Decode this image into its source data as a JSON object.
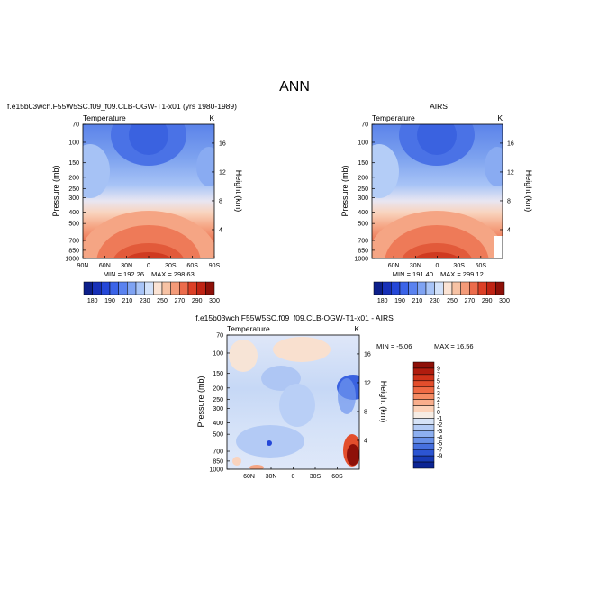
{
  "page_title": "ANN",
  "chart_data": [
    {
      "type": "heatmap",
      "subtype": "zonal-mean contour",
      "title": "f.e15b03wch.F55W5SC.f09_f09.CLB-OGW-T1-x01 (yrs 1980-1989)",
      "variable": "Temperature",
      "units": "K",
      "ylabel": "Pressure (mb)",
      "ylabel_right": "Height (km)",
      "pressure_ticks": [
        "70",
        "100",
        "150",
        "200",
        "250",
        "300",
        "400",
        "500",
        "700",
        "850",
        "1000"
      ],
      "height_ticks": [
        "4",
        "8",
        "12",
        "16"
      ],
      "lat_ticks": [
        "90N",
        "60N",
        "30N",
        "0",
        "30S",
        "60S",
        "90S"
      ],
      "min_label": "MIN = 192.26",
      "max_label": "MAX = 298.63",
      "min": 192.26,
      "max": 298.63,
      "colorbar_levels": [
        "180",
        "190",
        "210",
        "230",
        "250",
        "270",
        "290",
        "300"
      ],
      "colorbar_colors": [
        "#0c1f8a",
        "#1730b8",
        "#2447d8",
        "#3a63e8",
        "#5a82ef",
        "#7fa3f3",
        "#a8c4f7",
        "#d3e2fa",
        "#fbe3d4",
        "#f7c2a4",
        "#f39a78",
        "#ec6c4c",
        "#dc4027",
        "#c02414",
        "#8e1008"
      ]
    },
    {
      "type": "heatmap",
      "subtype": "zonal-mean contour",
      "title": "AIRS",
      "variable": "Temperature",
      "units": "K",
      "ylabel": "Pressure (mb)",
      "ylabel_right": "Height (km)",
      "pressure_ticks": [
        "70",
        "100",
        "150",
        "200",
        "250",
        "300",
        "400",
        "500",
        "700",
        "850",
        "1000"
      ],
      "height_ticks": [
        "4",
        "8",
        "12",
        "16"
      ],
      "lat_ticks": [
        "60N",
        "30N",
        "0",
        "30S",
        "60S"
      ],
      "min_label": "MIN = 191.40",
      "max_label": "MAX = 299.12",
      "min": 191.4,
      "max": 299.12,
      "colorbar_levels": [
        "180",
        "190",
        "210",
        "230",
        "250",
        "270",
        "290",
        "300"
      ],
      "colorbar_colors": [
        "#0c1f8a",
        "#1730b8",
        "#2447d8",
        "#3a63e8",
        "#5a82ef",
        "#7fa3f3",
        "#a8c4f7",
        "#d3e2fa",
        "#fbe3d4",
        "#f7c2a4",
        "#f39a78",
        "#ec6c4c",
        "#dc4027",
        "#c02414",
        "#8e1008"
      ]
    },
    {
      "type": "heatmap",
      "subtype": "zonal-mean difference contour",
      "title": "f.e15b03wch.F55W5SC.f09_f09.CLB-OGW-T1-x01 - AIRS",
      "variable": "Temperature",
      "units": "K",
      "ylabel": "Pressure (mb)",
      "ylabel_right": "Height (km)",
      "pressure_ticks": [
        "70",
        "100",
        "150",
        "200",
        "250",
        "300",
        "400",
        "500",
        "700",
        "850",
        "1000"
      ],
      "height_ticks": [
        "4",
        "8",
        "12",
        "16"
      ],
      "lat_ticks": [
        "60N",
        "30N",
        "0",
        "30S",
        "60S"
      ],
      "min_label": "MIN = -5.06",
      "max_label": "MAX = 16.56",
      "min": -5.06,
      "max": 16.56,
      "colorbar_levels": [
        "9",
        "7",
        "5",
        "4",
        "3",
        "2",
        "1",
        "0",
        "-1",
        "-2",
        "-3",
        "-4",
        "-5",
        "-7",
        "-9"
      ],
      "colorbar_colors": [
        "#8e1008",
        "#b01c0e",
        "#cf3219",
        "#e34e2c",
        "#ef6a44",
        "#f58c64",
        "#f9ae8c",
        "#fcd2b9",
        "#f6ece4",
        "#d6e3f7",
        "#b3cbf5",
        "#8daff0",
        "#6890e8",
        "#4670df",
        "#2c55d2",
        "#183bb5",
        "#0c2594"
      ]
    }
  ]
}
